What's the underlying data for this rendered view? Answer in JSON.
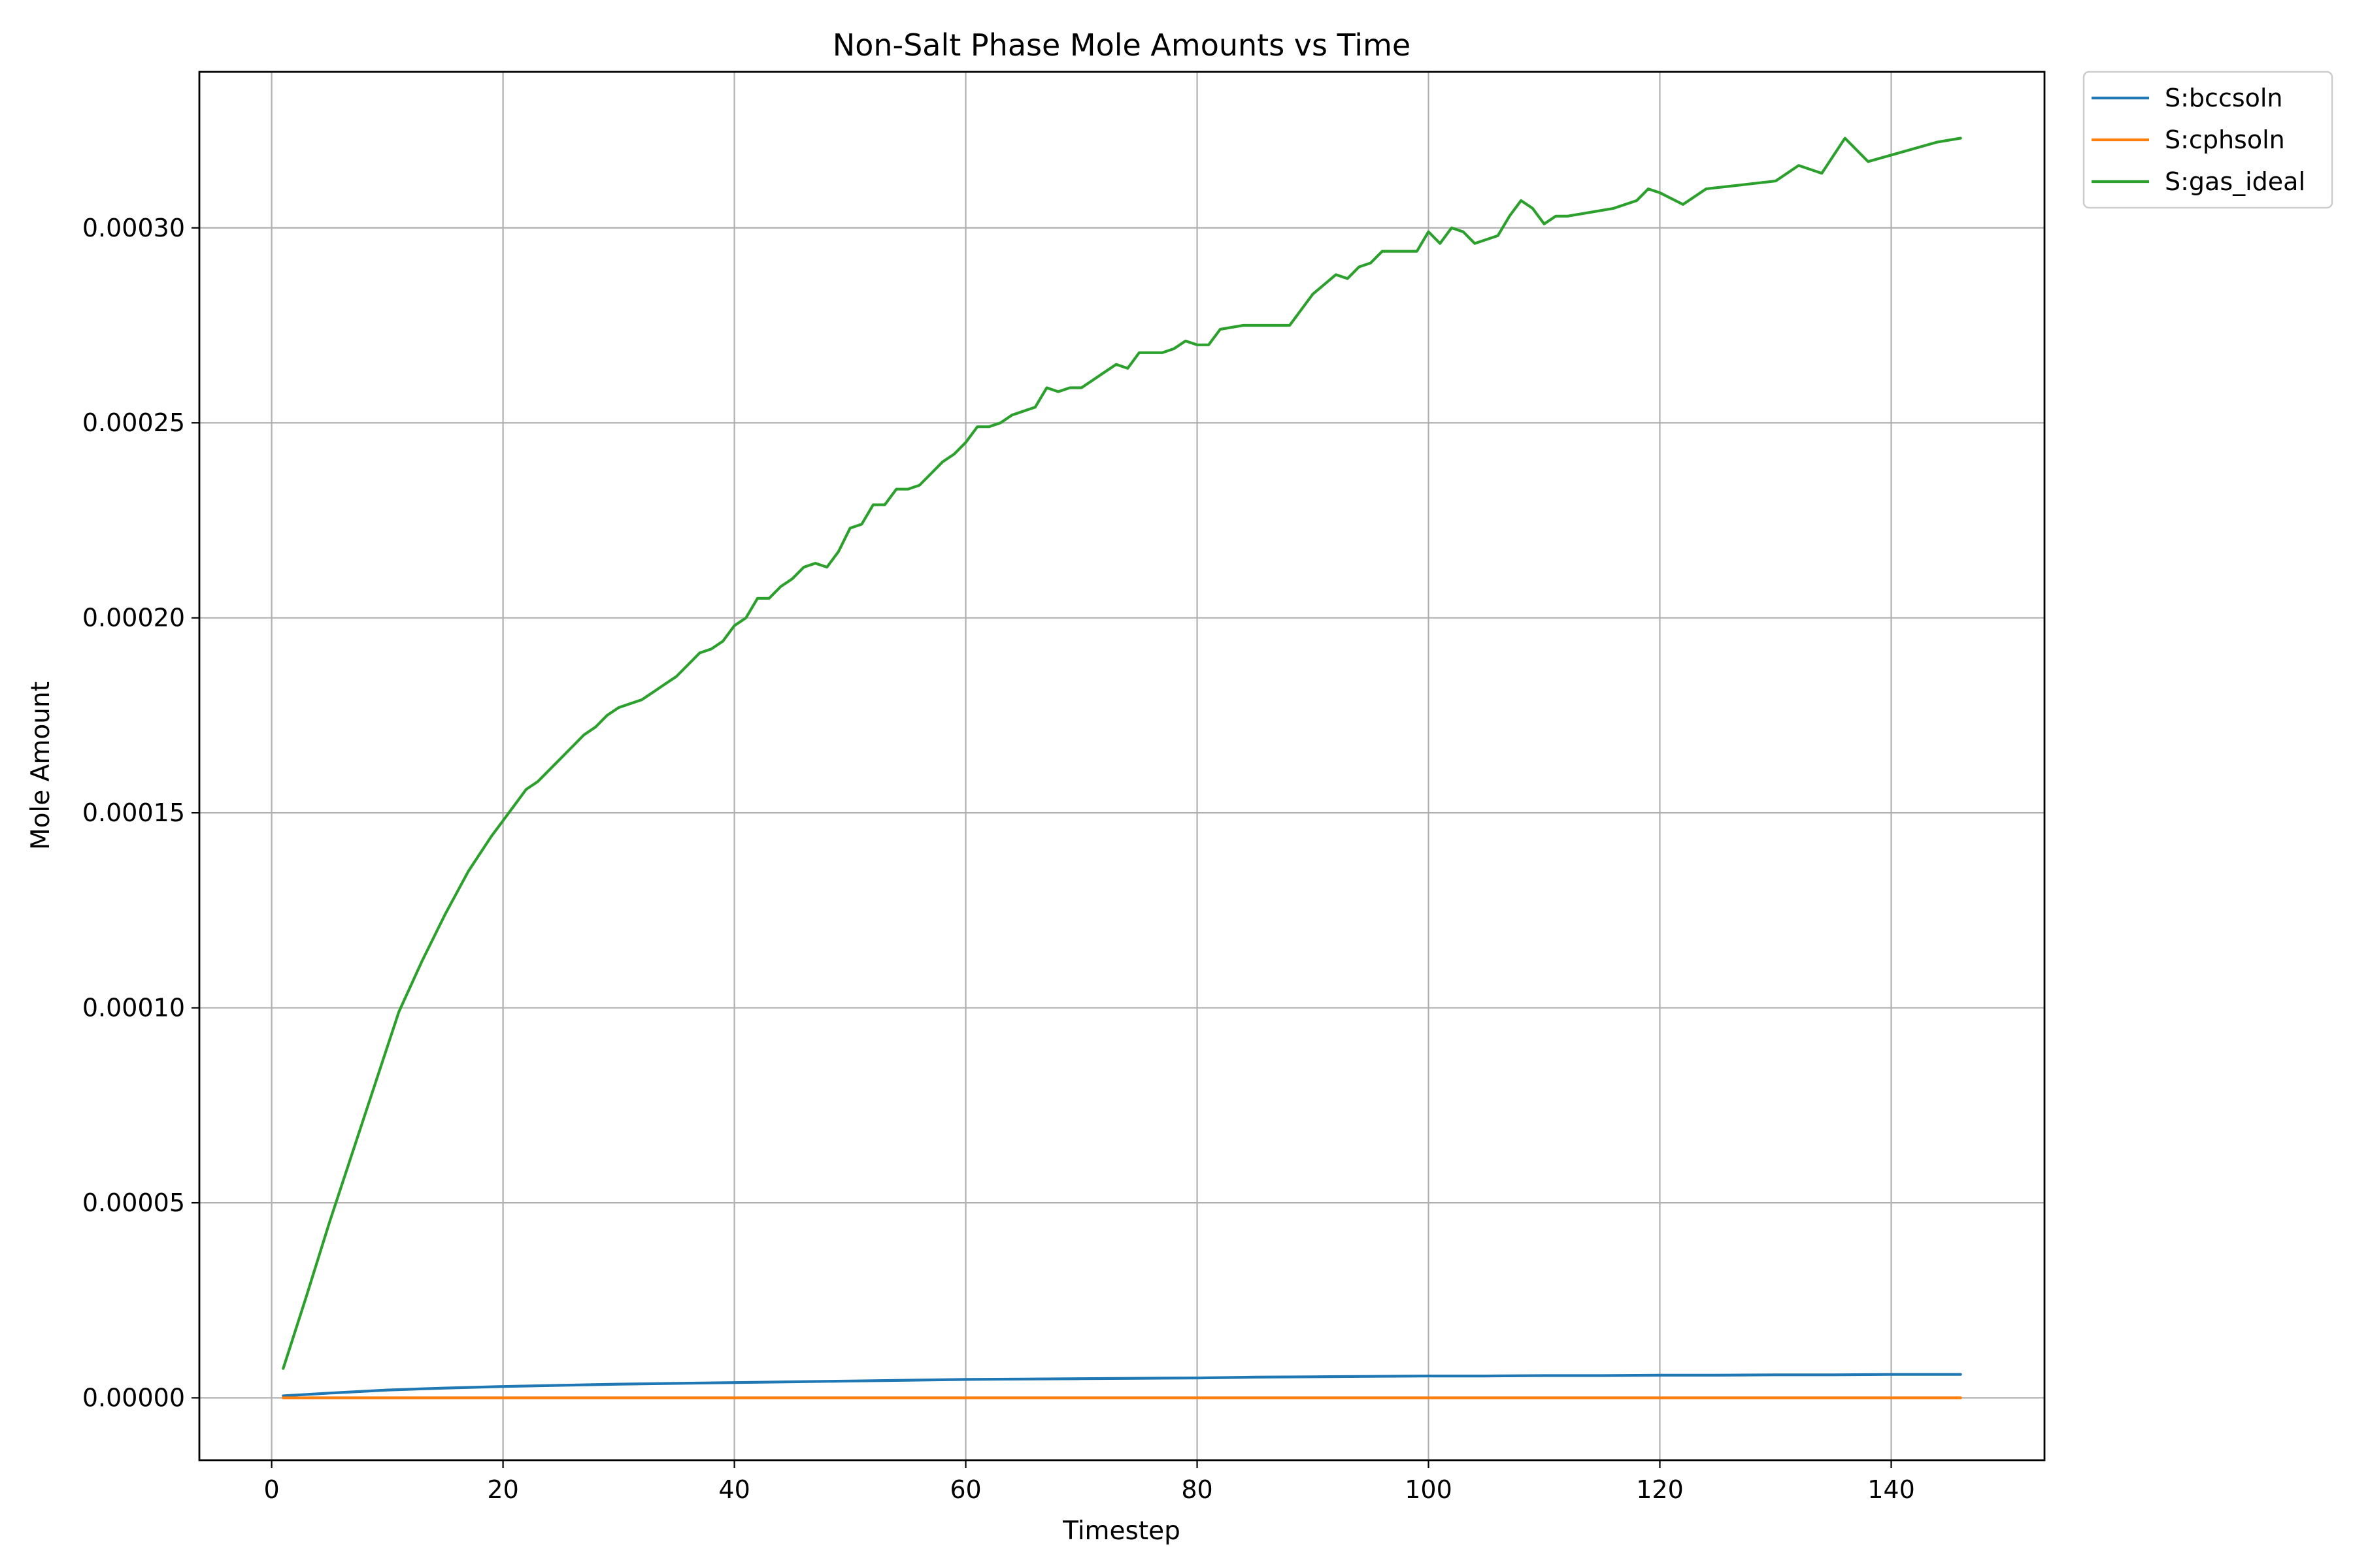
{
  "chart_data": {
    "type": "line",
    "title": "Non-Salt Phase Mole Amounts vs Time",
    "xlabel": "Timestep",
    "ylabel": "Mole Amount",
    "xlim": [
      -6.25,
      153.25
    ],
    "ylim": [
      -1.6e-05,
      0.00034
    ],
    "xticks": [
      0,
      20,
      40,
      60,
      80,
      100,
      120,
      140
    ],
    "xtick_labels": [
      "0",
      "20",
      "40",
      "60",
      "80",
      "100",
      "120",
      "140"
    ],
    "yticks": [
      0,
      5e-05,
      0.0001,
      0.00015,
      0.0002,
      0.00025,
      0.0003
    ],
    "ytick_labels": [
      "0.00000",
      "0.00005",
      "0.00010",
      "0.00015",
      "0.00020",
      "0.00025",
      "0.00030"
    ],
    "grid": true,
    "legend_position": "outside upper right",
    "series": [
      {
        "name": "S:bccsoln",
        "color": "#1f77b4",
        "x": [
          1,
          5,
          10,
          15,
          20,
          25,
          30,
          35,
          40,
          45,
          50,
          55,
          60,
          65,
          70,
          75,
          80,
          85,
          90,
          95,
          100,
          105,
          110,
          115,
          120,
          125,
          130,
          135,
          140,
          146
        ],
        "y": [
          5e-07,
          1.2e-06,
          2e-06,
          2.5e-06,
          2.9e-06,
          3.2e-06,
          3.5e-06,
          3.7e-06,
          3.9e-06,
          4.1e-06,
          4.3e-06,
          4.5e-06,
          4.7e-06,
          4.8e-06,
          4.9e-06,
          5e-06,
          5.1e-06,
          5.3e-06,
          5.4e-06,
          5.5e-06,
          5.6e-06,
          5.6e-06,
          5.7e-06,
          5.7e-06,
          5.8e-06,
          5.8e-06,
          5.9e-06,
          5.9e-06,
          6e-06,
          6e-06
        ]
      },
      {
        "name": "S:cphsoln",
        "color": "#ff7f0e",
        "x": [
          1,
          20,
          40,
          60,
          80,
          100,
          120,
          146
        ],
        "y": [
          0,
          0,
          0,
          0,
          0,
          0,
          0,
          0
        ]
      },
      {
        "name": "S:gas_ideal",
        "color": "#2ca02c",
        "x": [
          1,
          3,
          5,
          7,
          9,
          11,
          13,
          15,
          17,
          19,
          20,
          21,
          22,
          23,
          24,
          25,
          26,
          27,
          28,
          29,
          30,
          31,
          32,
          33,
          34,
          35,
          36,
          37,
          38,
          39,
          40,
          41,
          42,
          43,
          44,
          45,
          46,
          47,
          48,
          49,
          50,
          51,
          52,
          53,
          54,
          55,
          56,
          57,
          58,
          59,
          60,
          61,
          62,
          63,
          64,
          65,
          66,
          67,
          68,
          69,
          70,
          71,
          72,
          73,
          74,
          75,
          76,
          77,
          78,
          79,
          80,
          81,
          82,
          84,
          88,
          90,
          92,
          93,
          94,
          95,
          96,
          99,
          100,
          101,
          102,
          103,
          104,
          106,
          107,
          108,
          109,
          110,
          111,
          112,
          116,
          118,
          119,
          120,
          122,
          124,
          130,
          132,
          134,
          136,
          138,
          144,
          146
        ],
        "y": [
          7.5e-06,
          2.6e-05,
          4.5e-05,
          6.3e-05,
          8.1e-05,
          9.9e-05,
          0.000112,
          0.000124,
          0.000135,
          0.000144,
          0.000148,
          0.000152,
          0.000156,
          0.000158,
          0.000161,
          0.000164,
          0.000167,
          0.00017,
          0.000172,
          0.000175,
          0.000177,
          0.000178,
          0.000179,
          0.000181,
          0.000183,
          0.000185,
          0.000188,
          0.000191,
          0.000192,
          0.000194,
          0.000198,
          0.0002,
          0.000205,
          0.000205,
          0.000208,
          0.00021,
          0.000213,
          0.000214,
          0.000213,
          0.000217,
          0.000223,
          0.000224,
          0.000229,
          0.000229,
          0.000233,
          0.000233,
          0.000234,
          0.000237,
          0.00024,
          0.000242,
          0.000245,
          0.000249,
          0.000249,
          0.00025,
          0.000252,
          0.000253,
          0.000254,
          0.000259,
          0.000258,
          0.000259,
          0.000259,
          0.000261,
          0.000263,
          0.000265,
          0.000264,
          0.000268,
          0.000268,
          0.000268,
          0.000269,
          0.000271,
          0.00027,
          0.00027,
          0.000274,
          0.000275,
          0.000275,
          0.000283,
          0.000288,
          0.000287,
          0.00029,
          0.000291,
          0.000294,
          0.000294,
          0.000299,
          0.000296,
          0.0003,
          0.000299,
          0.000296,
          0.000298,
          0.000303,
          0.000307,
          0.000305,
          0.000301,
          0.000303,
          0.000303,
          0.000305,
          0.000307,
          0.00031,
          0.000309,
          0.000306,
          0.00031,
          0.000312,
          0.000316,
          0.000314,
          0.000323,
          0.000317,
          0.000322,
          0.000323
        ]
      }
    ]
  }
}
